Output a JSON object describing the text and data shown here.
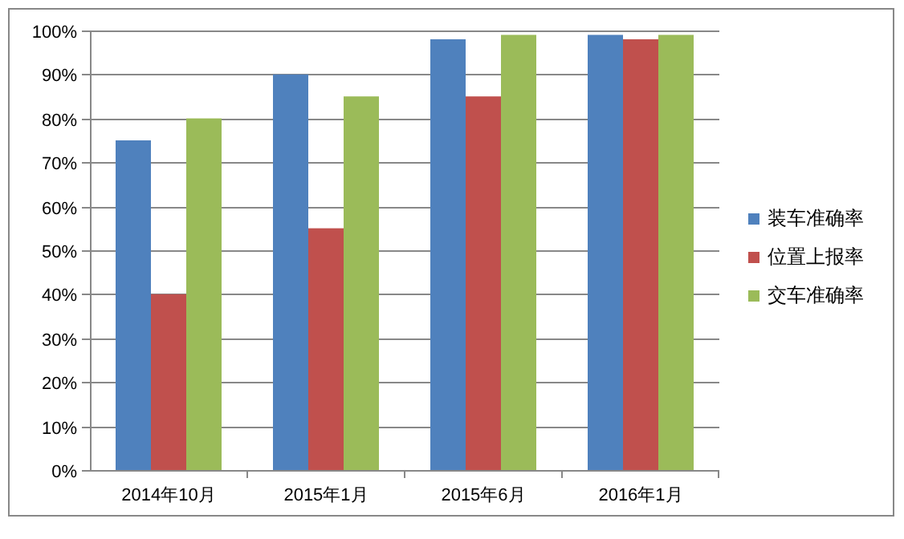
{
  "chart_data": {
    "type": "bar",
    "categories": [
      "2014年10月",
      "2015年1月",
      "2015年6月",
      "2016年1月"
    ],
    "series": [
      {
        "name": "装车准确率",
        "color": "#4f81bd",
        "values": [
          75,
          90,
          98,
          99
        ]
      },
      {
        "name": "位置上报率",
        "color": "#c0504d",
        "values": [
          40,
          55,
          85,
          98
        ]
      },
      {
        "name": "交车准确率",
        "color": "#9bbb59",
        "values": [
          80,
          85,
          99,
          99
        ]
      }
    ],
    "ylim": [
      0,
      100
    ],
    "yticks": [
      {
        "value": 0,
        "label": "0%"
      },
      {
        "value": 10,
        "label": "10%"
      },
      {
        "value": 20,
        "label": "20%"
      },
      {
        "value": 30,
        "label": "30%"
      },
      {
        "value": 40,
        "label": "40%"
      },
      {
        "value": 50,
        "label": "50%"
      },
      {
        "value": 60,
        "label": "60%"
      },
      {
        "value": 70,
        "label": "70%"
      },
      {
        "value": 80,
        "label": "80%"
      },
      {
        "value": 90,
        "label": "90%"
      },
      {
        "value": 100,
        "label": "100%"
      }
    ],
    "grid": "y",
    "legend": "right"
  }
}
